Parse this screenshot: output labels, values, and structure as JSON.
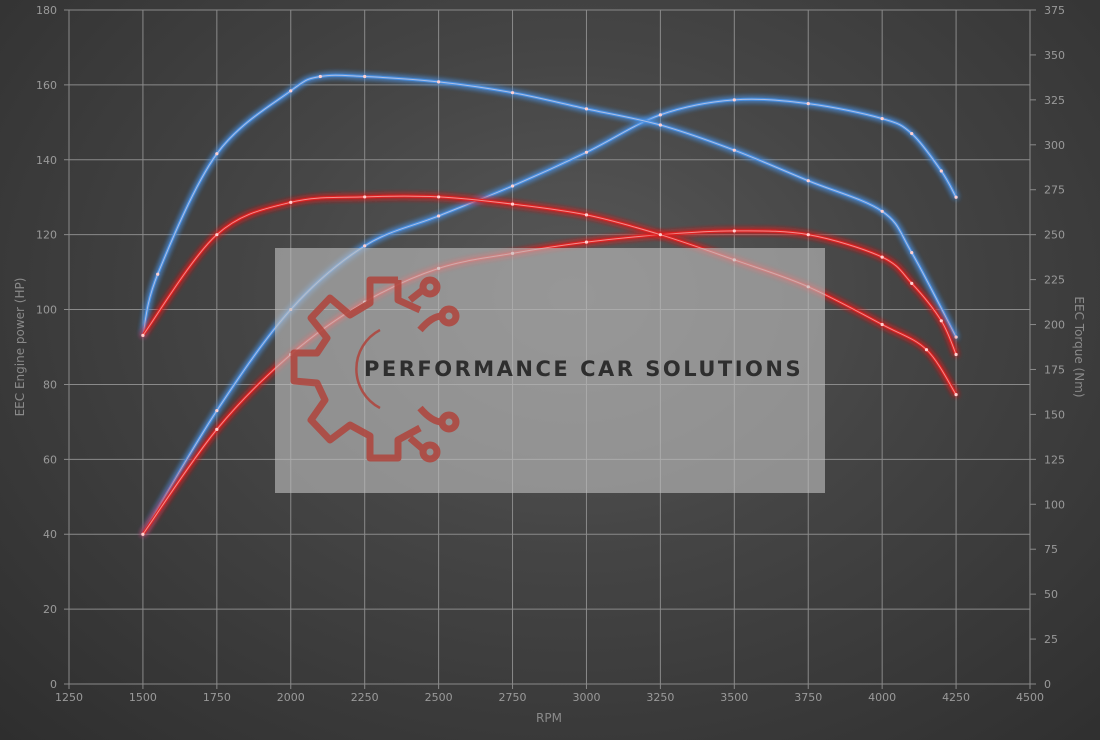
{
  "chart_data": {
    "type": "line",
    "title": "",
    "xlabel": "RPM",
    "ylabel_left": "EEC Engine power (HP)",
    "ylabel_right": "EEC Torque (Nm)",
    "xlim": [
      1250,
      4500
    ],
    "ylim_left": [
      0,
      180
    ],
    "ylim_right": [
      0,
      375
    ],
    "x_ticks": [
      1250,
      1500,
      1750,
      2000,
      2250,
      2500,
      2750,
      3000,
      3250,
      3500,
      3750,
      4000,
      4250,
      4500
    ],
    "y_ticks_left": [
      0,
      20,
      40,
      60,
      80,
      100,
      120,
      140,
      160,
      180
    ],
    "y_ticks_right": [
      0,
      25,
      50,
      75,
      100,
      125,
      150,
      175,
      200,
      225,
      250,
      275,
      300,
      325,
      350,
      375
    ],
    "grid": true,
    "legend": "none",
    "series": [
      {
        "axis": "left",
        "color": "#4a90e2",
        "kind": "power",
        "x": [
          1500,
          1750,
          2000,
          2250,
          2500,
          2750,
          3000,
          3250,
          3500,
          3750,
          4000,
          4100,
          4200,
          4250
        ],
        "y": [
          40,
          73,
          100,
          117,
          125,
          133,
          142,
          152,
          156,
          155,
          151,
          147,
          137,
          130
        ]
      },
      {
        "axis": "right",
        "color": "#4a90e2",
        "kind": "torque",
        "x": [
          1500,
          1550,
          1750,
          2000,
          2100,
          2250,
          2500,
          2750,
          3000,
          3250,
          3500,
          3750,
          4000,
          4100,
          4250
        ],
        "y": [
          194,
          228,
          295,
          330,
          338,
          338,
          335,
          329,
          320,
          311,
          297,
          280,
          263,
          240,
          193
        ]
      },
      {
        "axis": "left",
        "color": "#e02424",
        "kind": "power",
        "x": [
          1500,
          1750,
          2000,
          2250,
          2500,
          2750,
          3000,
          3250,
          3500,
          3750,
          4000,
          4100,
          4200,
          4250
        ],
        "y": [
          40,
          68,
          88,
          102,
          111,
          115,
          118,
          120,
          121,
          120,
          114,
          107,
          97,
          88
        ]
      },
      {
        "axis": "right",
        "color": "#e02424",
        "kind": "torque",
        "x": [
          1500,
          1750,
          2000,
          2250,
          2500,
          2750,
          3000,
          3250,
          3500,
          3750,
          4000,
          4150,
          4250
        ],
        "y": [
          194,
          250,
          268,
          271,
          271,
          267,
          261,
          250,
          236,
          221,
          200,
          186,
          161
        ]
      }
    ]
  },
  "watermark": {
    "text": "PERFORMANCE CAR SOLUTIONS",
    "logo_color": "#b0443c"
  }
}
